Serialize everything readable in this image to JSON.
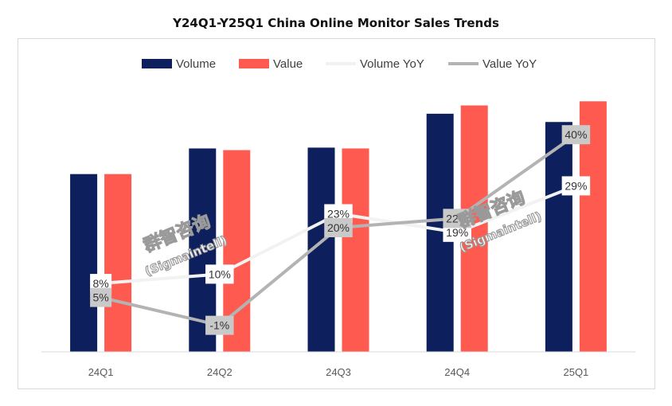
{
  "chart_data": {
    "type": "bar",
    "title": "Y24Q1-Y25Q1 China Online Monitor Sales Trends",
    "categories": [
      "24Q1",
      "24Q2",
      "24Q3",
      "24Q4",
      "25Q1"
    ],
    "bar_series": [
      {
        "name": "Volume",
        "color": "#0d1f5c",
        "values": [
          215,
          246,
          247,
          288,
          278
        ]
      },
      {
        "name": "Value",
        "color": "#ff5a4f",
        "values": [
          215,
          244,
          246,
          298,
          303
        ]
      }
    ],
    "bar_range": [
      0,
      310
    ],
    "line_series": [
      {
        "name": "Volume YoY",
        "color": "#f2f2f2",
        "values": [
          8,
          10,
          23,
          19,
          29
        ],
        "labels": [
          "8%",
          "10%",
          "23%",
          "19%",
          "29%"
        ]
      },
      {
        "name": "Value YoY",
        "color": "#b3b3b3",
        "values": [
          5,
          -1,
          20,
          22,
          40
        ],
        "labels": [
          "5%",
          "-1%",
          "20%",
          "22%",
          "40%"
        ]
      }
    ],
    "line_range": [
      -5,
      45
    ],
    "legend_position": "top",
    "grid": false
  },
  "watermark": {
    "brand": "群智咨询",
    "name": "(Sigmaintell)"
  }
}
